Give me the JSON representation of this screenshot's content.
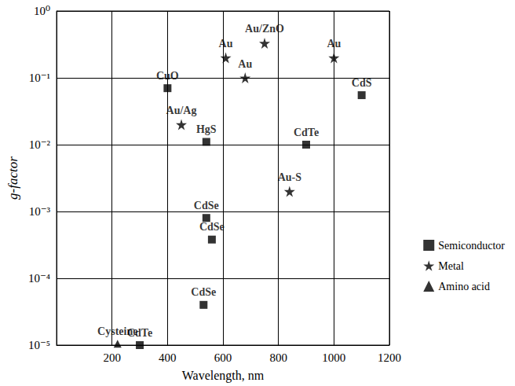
{
  "chart_data": {
    "type": "scatter",
    "x_label": "Wavelength, nm",
    "y_label": "g-factor",
    "log": "y",
    "grid": true,
    "legend": "right",
    "xlim": [
      0,
      1200
    ],
    "xticks": [
      200,
      400,
      600,
      800,
      1000,
      1200
    ],
    "ylim": [
      1e-05,
      1
    ],
    "yticks": [
      {
        "value": 1e-05,
        "label": "10⁻⁵"
      },
      {
        "value": 0.0001,
        "label": "10⁻⁴"
      },
      {
        "value": 0.001,
        "label": "10⁻³"
      },
      {
        "value": 0.01,
        "label": "10⁻²"
      },
      {
        "value": 0.1,
        "label": "10⁻¹"
      },
      {
        "value": 1,
        "label": "10⁰"
      }
    ],
    "series": [
      {
        "name": "Semiconductor",
        "marker": "square",
        "color": "#000000",
        "x": [
          400,
          540,
          900,
          1100,
          540,
          560,
          530,
          300
        ],
        "values": [
          0.07,
          0.011,
          0.01,
          0.055,
          0.0008,
          0.00038,
          4e-05,
          1e-05
        ],
        "point_labels": [
          "CuO",
          "HgS",
          "CdTe",
          "CdS",
          "CdSe",
          "CdSe",
          "CdSe",
          "CdTe"
        ]
      },
      {
        "name": "Metal",
        "marker": "star",
        "color": "#000000",
        "x": [
          450,
          610,
          680,
          750,
          1000,
          840
        ],
        "values": [
          0.02,
          0.2,
          0.1,
          0.33,
          0.2,
          0.002
        ],
        "point_labels": [
          "Au/Ag",
          "Au",
          "Au",
          "Au/ZnO",
          "Au",
          "Au-S"
        ]
      },
      {
        "name": "Amino acid",
        "marker": "triangle",
        "color": "#000000",
        "x": [
          220
        ],
        "values": [
          1.05e-05
        ],
        "point_labels": [
          "Cysteine"
        ]
      }
    ]
  }
}
